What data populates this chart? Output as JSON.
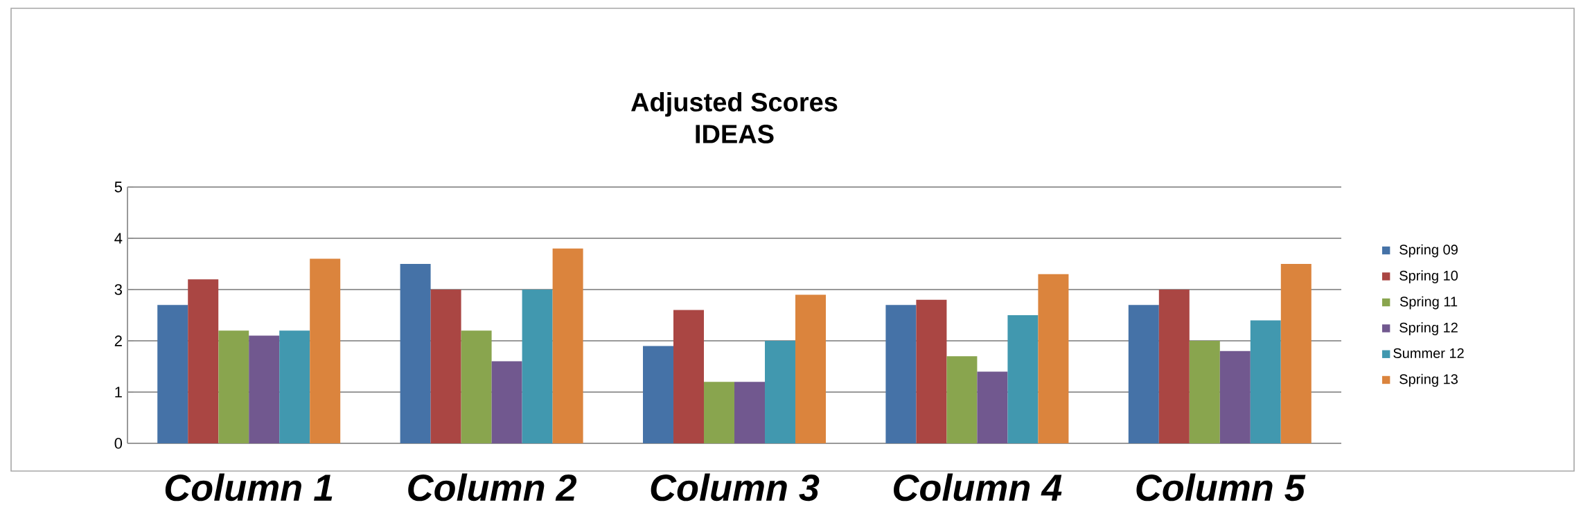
{
  "chart_data": {
    "type": "bar",
    "title": "Adjusted Scores",
    "subtitle": "IDEAS",
    "categories": [
      "Column 1",
      "Column 2",
      "Column 3",
      "Column 4",
      "Column 5"
    ],
    "series": [
      {
        "name": "Spring 09",
        "color": "#4572a7",
        "values": [
          2.7,
          3.5,
          1.9,
          2.7,
          2.7
        ]
      },
      {
        "name": "Spring 10",
        "color": "#aa4643",
        "values": [
          3.2,
          3.0,
          2.6,
          2.8,
          3.0
        ]
      },
      {
        "name": "Spring 11",
        "color": "#89a54e",
        "values": [
          2.2,
          2.2,
          1.2,
          1.7,
          2.0
        ]
      },
      {
        "name": "Spring 12",
        "color": "#71588f",
        "values": [
          2.1,
          1.6,
          1.2,
          1.4,
          1.8
        ]
      },
      {
        "name": "Summer 12",
        "color": "#4198af",
        "values": [
          2.2,
          3.0,
          2.0,
          2.5,
          2.4
        ]
      },
      {
        "name": "Spring 13",
        "color": "#db843d",
        "values": [
          3.6,
          3.8,
          2.9,
          3.3,
          3.5
        ]
      }
    ],
    "ylim": [
      0,
      5
    ],
    "yticks": [
      0,
      1,
      2,
      3,
      4,
      5
    ],
    "grid": "y",
    "legend": "right"
  }
}
